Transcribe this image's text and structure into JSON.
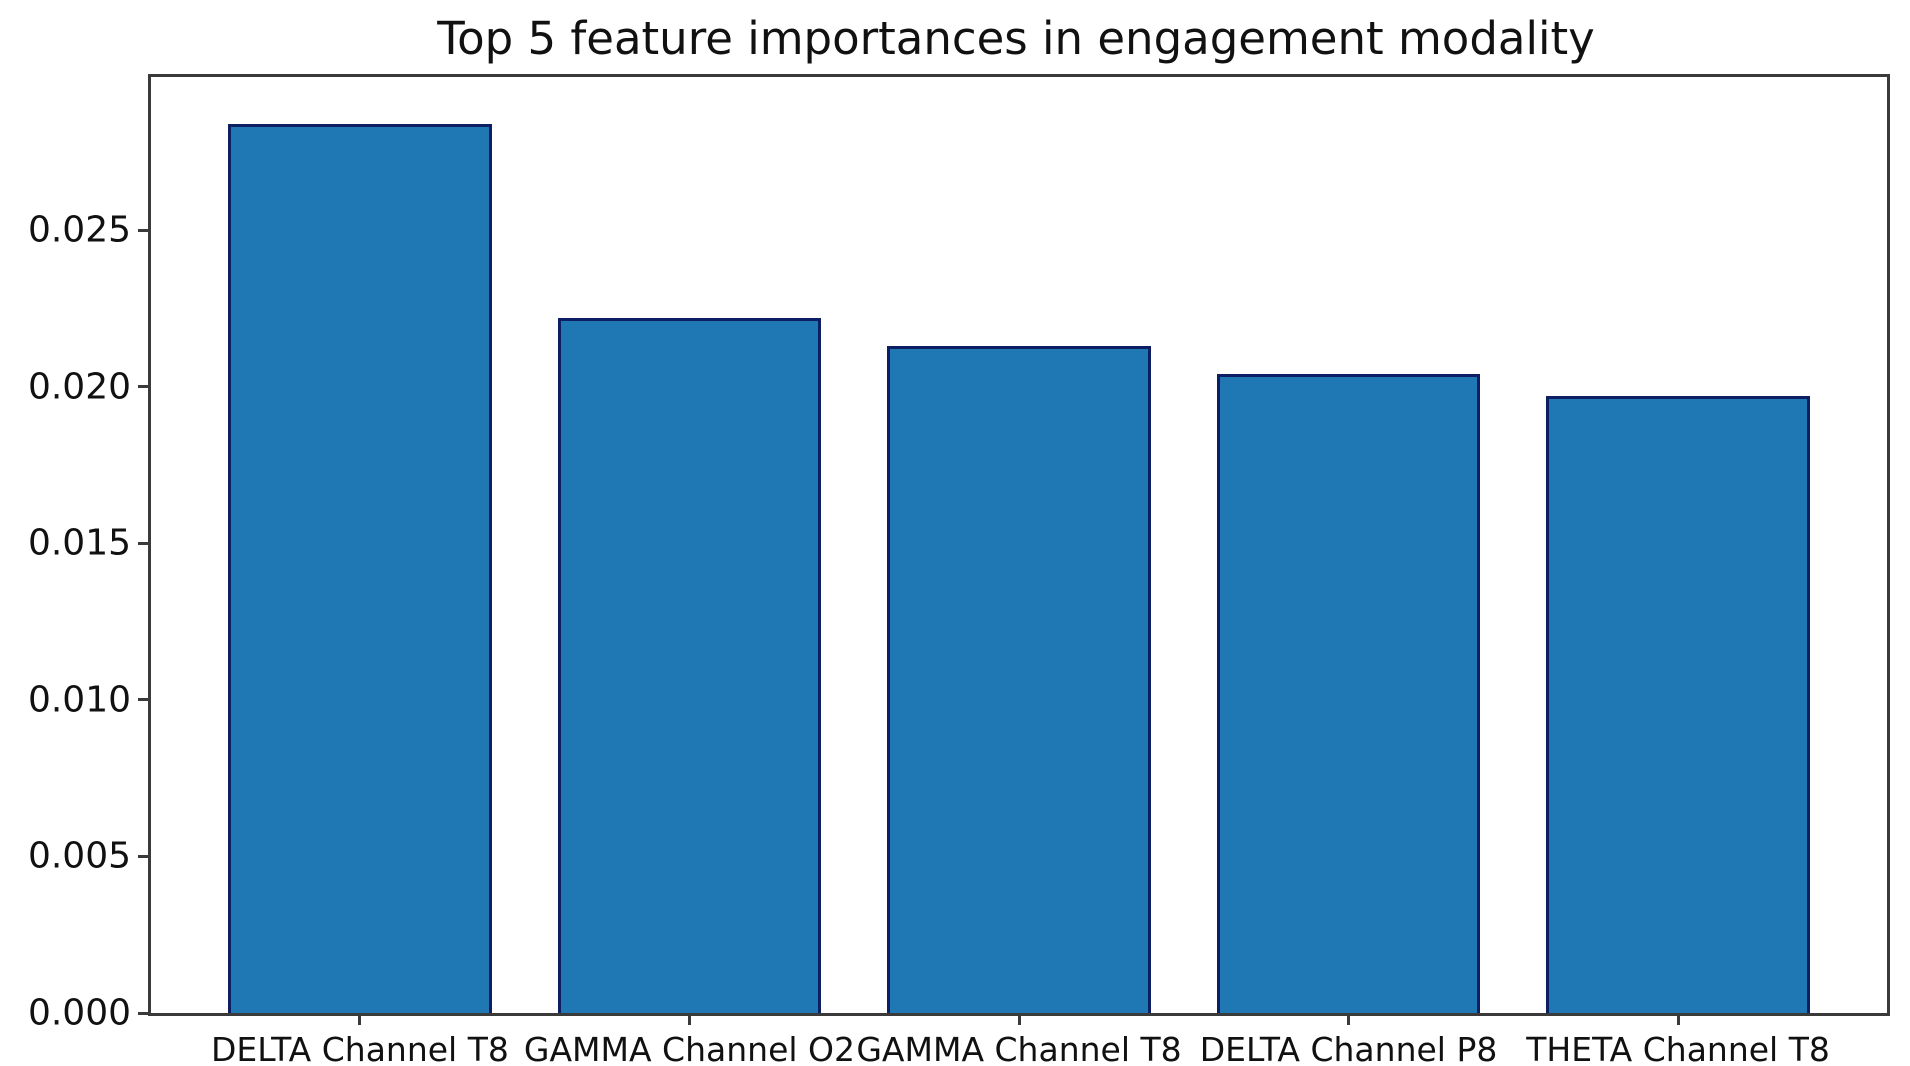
{
  "chart_data": {
    "type": "bar",
    "title": "Top 5 feature importances in engagement modality",
    "categories": [
      "DELTA Channel T8",
      "GAMMA Channel O2",
      "GAMMA Channel T8",
      "DELTA Channel P8",
      "THETA Channel T8"
    ],
    "values": [
      0.0284,
      0.0222,
      0.0213,
      0.0204,
      0.0197
    ],
    "xlabel": "",
    "ylabel": "",
    "ylim": [
      0,
      0.0299
    ],
    "ytick_values": [
      0.0,
      0.005,
      0.01,
      0.015,
      0.02,
      0.025
    ],
    "ytick_labels": [
      "0.000",
      "0.005",
      "0.010",
      "0.015",
      "0.020",
      "0.025"
    ],
    "bar_fill_color": "#1f77b4",
    "bar_edge_color": "#0d1e63",
    "spine_color": "#3a3a3a",
    "grid": "off",
    "legend": "none",
    "bar_width_axis_units": 0.8,
    "x_axis_units_span": 5.268,
    "x_axis_left_margin_units": 0.634
  }
}
